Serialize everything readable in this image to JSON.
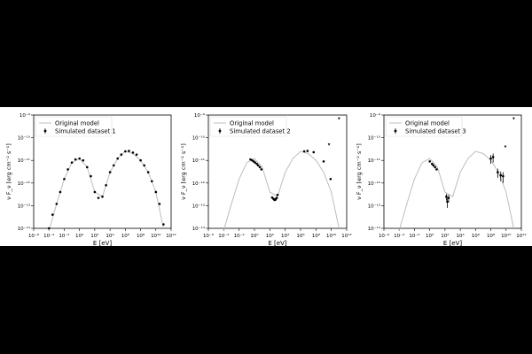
{
  "figure": {
    "background": "#ffffff",
    "page_background": "#000000",
    "model_color": "#bdbdbd",
    "point_color": "#000000"
  },
  "chart_data": [
    {
      "type": "scatter",
      "xscale": "log",
      "yscale": "log",
      "xlim": [
        1e-06,
        1000000000000.0
      ],
      "ylim": [
        1e-14,
        1e-09
      ],
      "xlabel": "E [eV]",
      "ylabel": "ν F_ν [erg cm⁻² s⁻¹]",
      "x_tick_labels": [
        "10⁻⁶",
        "10⁻⁴",
        "10⁻²",
        "10⁰",
        "10²",
        "10⁴",
        "10⁶",
        "10⁸",
        "10¹⁰",
        "10¹²"
      ],
      "y_tick_labels": [
        "10⁻¹⁴",
        "10⁻¹³",
        "10⁻¹²",
        "10⁻¹¹",
        "10⁻¹⁰",
        "10⁻⁹"
      ],
      "legend": {
        "placement": "top-left",
        "model_label": "Original model",
        "data_label": "Simulated dataset 1"
      },
      "series": [
        {
          "name": "Original model",
          "kind": "line",
          "x": [
            0.0001,
            0.001,
            0.01,
            0.1,
            1.0,
            10.0,
            100.0,
            1000.0,
            10000.0,
            100000.0,
            1000000.0,
            10000000.0,
            100000000.0,
            1000000000.0,
            10000000000.0,
            100000000000.0
          ],
          "y": [
            8e-15,
            1.2e-13,
            1.5e-12,
            8e-12,
            1.2e-11,
            5e-12,
            4e-13,
            2.5e-13,
            3e-12,
            1.2e-11,
            2.5e-11,
            2e-11,
            1e-11,
            3e-12,
            4e-13,
            1e-14
          ]
        },
        {
          "name": "Simulated dataset 1",
          "kind": "points",
          "x": [
            0.0001,
            0.0003,
            0.001,
            0.003,
            0.01,
            0.03,
            0.1,
            0.3,
            1.0,
            3.0,
            10.0,
            30.0,
            100.0,
            300.0,
            1000.0,
            3000.0,
            10000.0,
            30000.0,
            100000.0,
            300000.0,
            1000000.0,
            3000000.0,
            10000000.0,
            30000000.0,
            100000000.0,
            300000000.0,
            1000000000.0,
            3000000000.0,
            10000000000.0,
            30000000000.0,
            100000000000.0
          ],
          "y": [
            1e-14,
            4e-14,
            1.2e-13,
            4e-13,
            1.5e-12,
            4e-12,
            8e-12,
            1.1e-11,
            1.2e-11,
            1e-11,
            5e-12,
            2e-12,
            4e-13,
            2.2e-13,
            2.5e-13,
            8e-13,
            3e-12,
            6e-12,
            1.2e-11,
            1.8e-11,
            2.5e-11,
            2.6e-11,
            2.2e-11,
            1.8e-11,
            1e-11,
            6e-12,
            3e-12,
            1.2e-12,
            4e-13,
            1.2e-13,
            1.5e-14
          ],
          "err_lo": [],
          "err_hi": [],
          "upper_limits": []
        }
      ]
    },
    {
      "type": "scatter",
      "xscale": "log",
      "yscale": "log",
      "xlim": [
        1e-06,
        1000000000000.0
      ],
      "ylim": [
        1e-14,
        1e-09
      ],
      "xlabel": "E [eV]",
      "ylabel": "ν F_ν [erg cm⁻² s⁻¹]",
      "x_tick_labels": [
        "10⁻⁶",
        "10⁻⁴",
        "10⁻²",
        "10⁰",
        "10²",
        "10⁴",
        "10⁶",
        "10⁸",
        "10¹⁰",
        "10¹²"
      ],
      "y_tick_labels": [
        "10⁻¹⁴",
        "10⁻¹³",
        "10⁻¹²",
        "10⁻¹¹",
        "10⁻¹⁰",
        "10⁻⁹"
      ],
      "legend": {
        "placement": "top-left",
        "model_label": "Original model",
        "data_label": "Simulated dataset 2"
      },
      "series": [
        {
          "name": "Original model",
          "kind": "line",
          "x": [
            0.0001,
            0.001,
            0.01,
            0.1,
            1.0,
            10.0,
            100.0,
            1000.0,
            10000.0,
            100000.0,
            1000000.0,
            10000000.0,
            100000000.0,
            1000000000.0,
            10000000000.0,
            100000000000.0
          ],
          "y": [
            8e-15,
            1.2e-13,
            1.5e-12,
            8e-12,
            1.2e-11,
            5e-12,
            4e-13,
            2.5e-13,
            3e-12,
            1.2e-11,
            2.5e-11,
            2e-11,
            1e-11,
            3e-12,
            4e-13,
            1e-14
          ]
        },
        {
          "name": "Simulated dataset 2",
          "kind": "points",
          "x": [
            0.3,
            0.5,
            0.8,
            1.2,
            2.0,
            3.0,
            5.0,
            8.0,
            200.0,
            300.0,
            400.0,
            500.0,
            600.0,
            800.0,
            1000.0,
            3000000.0,
            8000000.0,
            50000000.0,
            1000000000.0,
            8000000000.0
          ],
          "y": [
            1.1e-11,
            1e-11,
            9e-12,
            8e-12,
            7e-12,
            6e-12,
            5e-12,
            4e-12,
            2.3e-13,
            2e-13,
            1.8e-13,
            1.8e-13,
            2e-13,
            2.2e-13,
            3e-13,
            2.5e-11,
            2.6e-11,
            2.3e-11,
            9e-12,
            1.5e-12
          ],
          "err_lo": [],
          "err_hi": [],
          "upper_limits": [
            {
              "x": 5000000000.0,
              "y": 5e-11
            },
            {
              "x": 100000000000.0,
              "y": 7e-10
            }
          ]
        }
      ]
    },
    {
      "type": "scatter",
      "xscale": "log",
      "yscale": "log",
      "xlim": [
        1e-06,
        1000000000000.0
      ],
      "ylim": [
        1e-14,
        1e-09
      ],
      "xlabel": "E [eV]",
      "ylabel": "ν F_ν [erg cm⁻² s⁻¹]",
      "x_tick_labels": [
        "10⁻⁶",
        "10⁻⁴",
        "10⁻²",
        "10⁰",
        "10²",
        "10⁴",
        "10⁶",
        "10⁸",
        "10¹⁰",
        "10¹²"
      ],
      "y_tick_labels": [
        "10⁻¹⁴",
        "10⁻¹³",
        "10⁻¹²",
        "10⁻¹¹",
        "10⁻¹⁰",
        "10⁻⁹"
      ],
      "legend": {
        "placement": "top-left",
        "model_label": "Original model",
        "data_label": "Simulated dataset 3"
      },
      "series": [
        {
          "name": "Original model",
          "kind": "line",
          "x": [
            0.0001,
            0.001,
            0.01,
            0.1,
            1.0,
            10.0,
            100.0,
            1000.0,
            10000.0,
            100000.0,
            1000000.0,
            10000000.0,
            100000000.0,
            1000000000.0,
            10000000000.0,
            100000000000.0
          ],
          "y": [
            8e-15,
            1.2e-13,
            1.5e-12,
            8e-12,
            1.2e-11,
            5e-12,
            4e-13,
            2.5e-13,
            3e-12,
            1.2e-11,
            2.5e-11,
            2e-11,
            1e-11,
            3e-12,
            4e-13,
            1e-14
          ]
        },
        {
          "name": "Simulated dataset 3",
          "kind": "points",
          "x": [
            1.0,
            2.0,
            3.0,
            5.0,
            8.0,
            150.0,
            200.0,
            300.0,
            100000000.0,
            200000000.0,
            800000000.0,
            2000000000.0,
            4000000000.0
          ],
          "y": [
            9e-12,
            7e-12,
            6e-12,
            5e-12,
            4e-12,
            2.5e-13,
            1.5e-13,
            2.2e-13,
            1.2e-11,
            1.4e-11,
            3e-12,
            2.2e-12,
            2e-12
          ],
          "err_lo": [
            0,
            0,
            0,
            0,
            0,
            8e-14,
            7e-14,
            8e-14,
            5e-12,
            6e-12,
            1.3e-12,
            1e-12,
            1e-12
          ],
          "err_hi": [
            0,
            0,
            0,
            0,
            0,
            8e-14,
            7e-14,
            8e-14,
            5e-12,
            6e-12,
            1.3e-12,
            1e-12,
            1e-12
          ],
          "upper_limits": [
            {
              "x": 8000000000.0,
              "y": 4e-11
            },
            {
              "x": 100000000000.0,
              "y": 7e-10
            }
          ]
        }
      ]
    }
  ]
}
